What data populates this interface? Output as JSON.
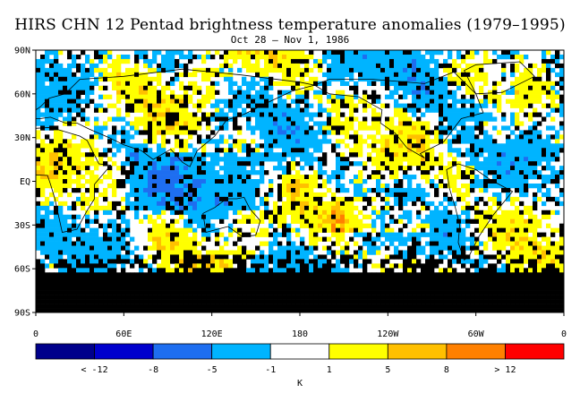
{
  "title": "HIRS CHN 12 Pentad brightness temperature anomalies (1979–1995)",
  "subtitle": "Oct 28 – Nov 1, 1986",
  "map": {
    "lat_ticks": [
      "90N",
      "60N",
      "30N",
      "EQ",
      "30S",
      "60S",
      "90S"
    ],
    "lon_ticks": [
      "0",
      "60E",
      "120E",
      "180",
      "120W",
      "60W",
      "0"
    ],
    "missing_color": "#000000"
  },
  "colorbar": {
    "unit": "K",
    "tick_labels": [
      "< -12",
      "-8",
      "-5",
      "-1",
      "1",
      "5",
      "8",
      "> 12"
    ],
    "colors": [
      "#00008b",
      "#0000cd",
      "#1e6ef0",
      "#00b4ff",
      "#ffffff",
      "#ffff00",
      "#ffc000",
      "#ff8000",
      "#ff0000"
    ]
  }
}
